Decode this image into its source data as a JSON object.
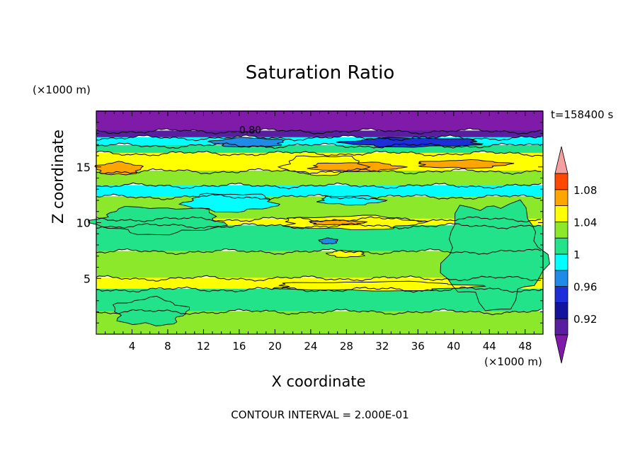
{
  "chart_data": {
    "type": "filled-contour",
    "title": "Saturation Ratio",
    "xlabel": "X coordinate",
    "ylabel": "Z coordinate",
    "x_unit": "(×1000 m)",
    "y_unit": "(×1000 m)",
    "time_label": "t=158400 s",
    "footer": "CONTOUR INTERVAL = 2.000E-01",
    "xlim": [
      0,
      50
    ],
    "ylim": [
      0,
      20
    ],
    "x_ticks": [
      4,
      8,
      12,
      16,
      20,
      24,
      28,
      32,
      36,
      40,
      44,
      48
    ],
    "y_ticks": [
      5,
      10,
      15
    ],
    "contour_label": "0.80",
    "colorbar": {
      "levels": [
        0.9,
        0.92,
        0.94,
        0.96,
        0.98,
        1.0,
        1.02,
        1.04,
        1.06,
        1.08,
        1.1
      ],
      "labels": [
        "0.92",
        "0.96",
        "1",
        "1.04",
        "1.08"
      ],
      "label_values": [
        0.92,
        0.96,
        1.0,
        1.04,
        1.08
      ],
      "colors": [
        "#5a1fa0",
        "#13139e",
        "#1d2ed8",
        "#1f8ae8",
        "#00ffff",
        "#22e38a",
        "#8ce82a",
        "#ffff00",
        "#ffa500",
        "#ff4800",
        "#ff3030"
      ],
      "under_color": "#7f1ba8",
      "over_color": "#f5a0a0"
    },
    "bands": [
      {
        "z": [
          18.2,
          20
        ],
        "value": 0.8,
        "color": "#7f1ba8"
      },
      {
        "z": [
          17.6,
          18.2
        ],
        "value": 0.9,
        "color": "#5a1fa0"
      },
      {
        "z": [
          16.9,
          17.6
        ],
        "value": 0.97,
        "color": "#00ffff"
      },
      {
        "z": [
          16.2,
          16.9
        ],
        "value": 0.99,
        "color": "#22e38a"
      },
      {
        "z": [
          14.6,
          16.2
        ],
        "value": 1.03,
        "color": "#ffff00"
      },
      {
        "z": [
          13.3,
          14.6
        ],
        "value": 1.01,
        "color": "#8ce82a"
      },
      {
        "z": [
          12.3,
          13.3
        ],
        "value": 0.98,
        "color": "#00ffff"
      },
      {
        "z": [
          10.3,
          12.3
        ],
        "value": 1.01,
        "color": "#8ce82a"
      },
      {
        "z": [
          9.7,
          10.3
        ],
        "value": 1.03,
        "color": "#ffff00"
      },
      {
        "z": [
          7.4,
          9.7
        ],
        "value": 1.0,
        "color": "#22e38a"
      },
      {
        "z": [
          5.0,
          7.4
        ],
        "value": 1.01,
        "color": "#8ce82a"
      },
      {
        "z": [
          4.0,
          5.0
        ],
        "value": 1.03,
        "color": "#ffff00"
      },
      {
        "z": [
          2.0,
          4.0
        ],
        "value": 1.0,
        "color": "#22e38a"
      },
      {
        "z": [
          0,
          2.0
        ],
        "value": 1.01,
        "color": "#8ce82a"
      }
    ],
    "patches": [
      {
        "x": [
          21,
          30
        ],
        "z": [
          14.3,
          16.0
        ],
        "value": 1.03,
        "color": "#ffff00"
      },
      {
        "x": [
          24,
          34
        ],
        "z": [
          14.6,
          15.4
        ],
        "value": 1.05,
        "color": "#ffa500"
      },
      {
        "x": [
          36,
          46
        ],
        "z": [
          14.9,
          15.6
        ],
        "value": 1.05,
        "color": "#ffa500"
      },
      {
        "x": [
          0,
          5
        ],
        "z": [
          14.3,
          15.4
        ],
        "value": 1.05,
        "color": "#ffa500"
      },
      {
        "x": [
          13,
          21
        ],
        "z": [
          16.8,
          17.6
        ],
        "value": 0.95,
        "color": "#1f8ae8"
      },
      {
        "x": [
          28,
          43
        ],
        "z": [
          16.8,
          17.6
        ],
        "value": 0.93,
        "color": "#1d2ed8"
      },
      {
        "x": [
          10,
          20
        ],
        "z": [
          11.0,
          12.6
        ],
        "value": 0.98,
        "color": "#00ffff"
      },
      {
        "x": [
          25,
          32
        ],
        "z": [
          11.6,
          12.4
        ],
        "value": 0.97,
        "color": "#00ffff"
      },
      {
        "x": [
          21,
          36
        ],
        "z": [
          9.4,
          10.6
        ],
        "value": 1.03,
        "color": "#ffff00"
      },
      {
        "x": [
          24,
          30
        ],
        "z": [
          9.8,
          10.2
        ],
        "value": 1.05,
        "color": "#ffa500"
      },
      {
        "x": [
          25,
          27
        ],
        "z": [
          8.1,
          8.6
        ],
        "value": 0.95,
        "color": "#1f8ae8"
      },
      {
        "x": [
          26,
          30
        ],
        "z": [
          6.9,
          7.5
        ],
        "value": 1.03,
        "color": "#ffff00"
      },
      {
        "x": [
          0,
          14
        ],
        "z": [
          9.0,
          11.4
        ],
        "value": 1.0,
        "color": "#22e38a"
      },
      {
        "x": [
          39,
          50
        ],
        "z": [
          2.5,
          11.8
        ],
        "value": 1.0,
        "color": "#22e38a"
      },
      {
        "x": [
          20,
          42
        ],
        "z": [
          3.9,
          4.7
        ],
        "value": 1.04,
        "color": "#ffff00"
      },
      {
        "x": [
          2,
          10
        ],
        "z": [
          0.8,
          3.2
        ],
        "value": 1.0,
        "color": "#22e38a"
      }
    ]
  }
}
